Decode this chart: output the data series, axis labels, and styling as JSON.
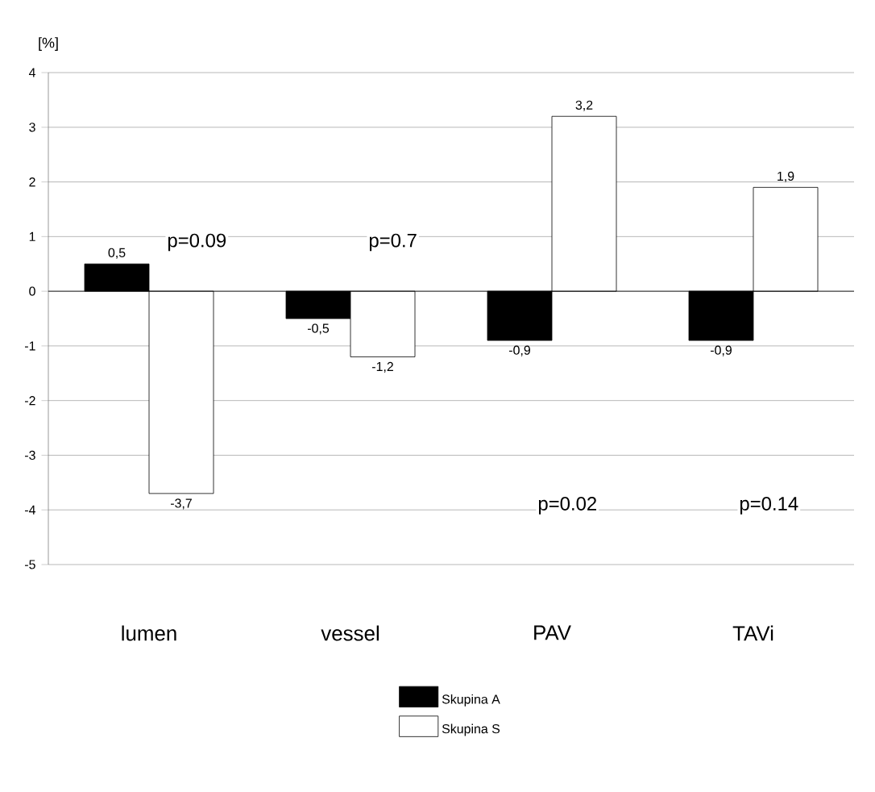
{
  "chart_data": {
    "type": "bar",
    "ylabel": "[%]",
    "categories": [
      "lumen",
      "vessel",
      "PAV",
      "TAVi"
    ],
    "series": [
      {
        "name": "Skupina A",
        "color": "#000000",
        "values": [
          0.5,
          -0.5,
          -0.9,
          -0.9
        ],
        "value_labels": [
          "0,5",
          "-0,5",
          "-0,9",
          "-0,9"
        ]
      },
      {
        "name": "Skupina S",
        "color": "#ffffff",
        "values": [
          -3.7,
          -1.2,
          3.2,
          1.9
        ],
        "value_labels": [
          "-3,7",
          "-1,2",
          "3,2",
          "1,9"
        ]
      }
    ],
    "ylim": [
      -5,
      4
    ],
    "yticks": [
      -5,
      -4,
      -3,
      -2,
      -1,
      0,
      1,
      2,
      3,
      4
    ],
    "grid": "y",
    "legend": "bottom",
    "annotations": [
      "p=0.09",
      "p=0.7",
      "p=0.02",
      "p=0.14"
    ]
  }
}
